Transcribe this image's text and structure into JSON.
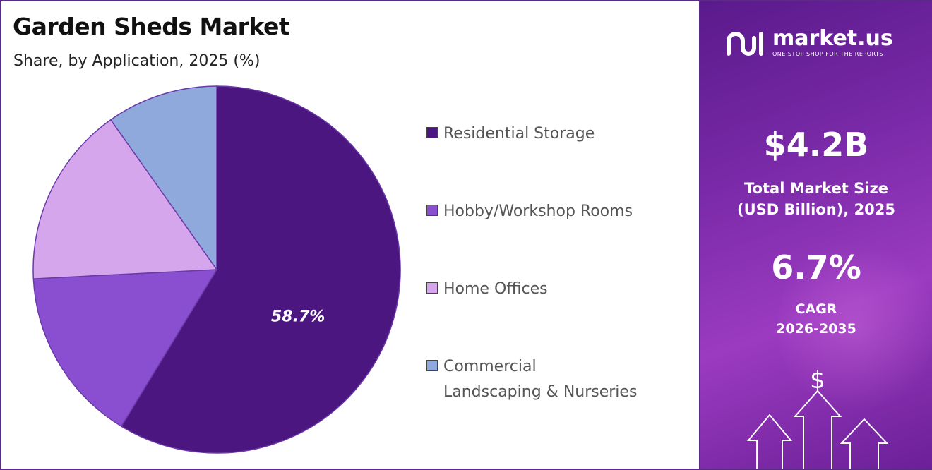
{
  "header": {
    "title": "Garden Sheds Market",
    "subtitle": "Share, by Application, 2025 (%)"
  },
  "chart_data": {
    "type": "pie",
    "title": "Garden Sheds Market",
    "subtitle": "Share, by Application, 2025 (%)",
    "categories": [
      "Residential Storage",
      "Hobby/Workshop Rooms",
      "Home Offices",
      "Commercial Landscaping & Nurseries"
    ],
    "values": [
      58.7,
      15.5,
      16.0,
      9.8
    ],
    "data_labels": [
      "58.7%",
      "",
      "",
      ""
    ],
    "colors": [
      "#4b1680",
      "#8a4fd0",
      "#d6a6ec",
      "#8fa9dc"
    ],
    "legend_position": "right",
    "start_angle_deg": 0,
    "direction": "clockwise"
  },
  "legend": [
    {
      "label": "Residential Storage",
      "color": "#4b1680"
    },
    {
      "label": "Hobby/Workshop Rooms",
      "color": "#8a4fd0"
    },
    {
      "label": "Home Offices",
      "color": "#d6a6ec"
    },
    {
      "label": "Commercial\nLandscaping & Nurseries",
      "color": "#8fa9dc"
    }
  ],
  "panel": {
    "brand": "market.us",
    "tagline": "ONE STOP SHOP FOR THE REPORTS",
    "market_size_value": "$4.2B",
    "market_size_label_1": "Total Market Size",
    "market_size_label_2": "(USD Billion), 2025",
    "cagr_value": "6.7%",
    "cagr_label_1": "CAGR",
    "cagr_label_2": "2026-2035",
    "dollar_symbol": "$",
    "icons": [
      "market-us-logo-icon",
      "up-arrow-icon",
      "dollar-icon"
    ]
  }
}
